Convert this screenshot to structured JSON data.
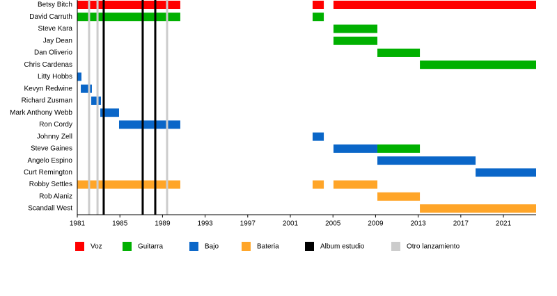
{
  "chart_data": {
    "type": "timeline",
    "categories": [
      "Betsy Bitch",
      "David Carruth",
      "Steve Kara",
      "Jay Dean",
      "Dan Oliverio",
      "Chris Cardenas",
      "Litty Hobbs",
      "Kevyn Redwine",
      "Richard Zusman",
      "Mark Anthony Webb",
      "Ron Cordy",
      "Johnny Zell",
      "Steve Gaines",
      "Angelo Espino",
      "Curt Remington",
      "Robby Settles",
      "Rob Alaniz",
      "Scandall West"
    ],
    "series": [
      {
        "name": "Voz",
        "color": "#ff0000",
        "bars": [
          {
            "row": 0,
            "start": 1981,
            "end": 1990.67
          },
          {
            "row": 0,
            "start": 2003.09,
            "end": 2004.14
          },
          {
            "row": 0,
            "start": 2005.05,
            "end": 2024.07
          }
        ]
      },
      {
        "name": "Guitarra",
        "color": "#00b000",
        "bars": [
          {
            "row": 1,
            "start": 1981,
            "end": 1990.67
          },
          {
            "row": 1,
            "start": 2003.09,
            "end": 2004.14
          },
          {
            "row": 2,
            "start": 2005.05,
            "end": 2009.17
          },
          {
            "row": 3,
            "start": 2005.05,
            "end": 2009.17
          },
          {
            "row": 4,
            "start": 2009.17,
            "end": 2013.16
          },
          {
            "row": 5,
            "start": 2013.16,
            "end": 2024.07
          },
          {
            "row": 12,
            "start": 2009.17,
            "end": 2013.16
          }
        ]
      },
      {
        "name": "Bajo",
        "color": "#0a66c8",
        "bars": [
          {
            "row": 6,
            "start": 1981,
            "end": 1981.39
          },
          {
            "row": 7,
            "start": 1981.33,
            "end": 1982.37
          },
          {
            "row": 8,
            "start": 1982.31,
            "end": 1983.22
          },
          {
            "row": 9,
            "start": 1983.16,
            "end": 1984.92
          },
          {
            "row": 10,
            "start": 1984.92,
            "end": 1990.67
          },
          {
            "row": 11,
            "start": 2003.09,
            "end": 2004.14
          },
          {
            "row": 12,
            "start": 2005.05,
            "end": 2009.17
          },
          {
            "row": 13,
            "start": 2009.17,
            "end": 2018.39
          },
          {
            "row": 14,
            "start": 2018.39,
            "end": 2024.07
          }
        ]
      },
      {
        "name": "Bateria",
        "color": "#ffa528",
        "bars": [
          {
            "row": 15,
            "start": 1981,
            "end": 1990.67
          },
          {
            "row": 15,
            "start": 2003.09,
            "end": 2004.14
          },
          {
            "row": 15,
            "start": 2005.05,
            "end": 2009.17
          },
          {
            "row": 16,
            "start": 2009.17,
            "end": 2013.16
          },
          {
            "row": 17,
            "start": 2013.16,
            "end": 2024.07
          }
        ]
      }
    ],
    "releases": [
      {
        "name": "Album estudio",
        "color": "#000000",
        "values": [
          1983.48,
          1987.14,
          1988.32
        ]
      },
      {
        "name": "Otro lanzamiento",
        "color": "#cccccc",
        "values": [
          1982.11,
          1982.9,
          1989.43
        ]
      }
    ],
    "xlim": [
      1981,
      2024.07
    ],
    "xticks": [
      1981,
      1985,
      1989,
      1993,
      1997,
      2001,
      2005,
      2009,
      2013,
      2017,
      2021
    ]
  }
}
